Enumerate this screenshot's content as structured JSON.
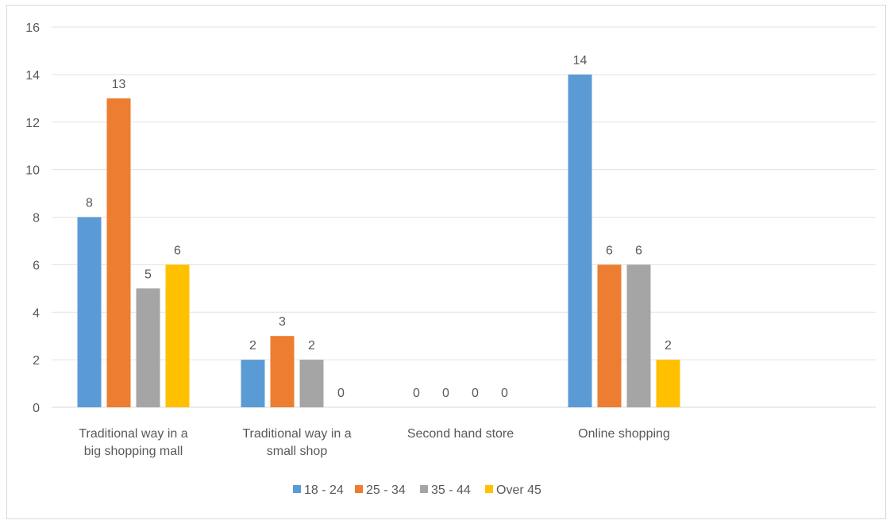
{
  "chart_data": {
    "type": "bar",
    "title": "",
    "xlabel": "",
    "ylabel": "",
    "ylim": [
      0,
      16
    ],
    "yticks": [
      0,
      2,
      4,
      6,
      8,
      10,
      12,
      14,
      16
    ],
    "grid": true,
    "legend_position": "bottom",
    "categories": [
      [
        "Traditional way in a",
        "big shopping mall"
      ],
      [
        "Traditional way in a",
        "small shop"
      ],
      [
        "Second hand store"
      ],
      [
        "Online shopping"
      ]
    ],
    "series": [
      {
        "name": "18 - 24",
        "color": "#5b9bd5",
        "values": [
          8,
          2,
          0,
          14
        ]
      },
      {
        "name": "25 - 34",
        "color": "#ed7d31",
        "values": [
          13,
          3,
          0,
          6
        ]
      },
      {
        "name": "35 - 44",
        "color": "#a5a5a5",
        "values": [
          5,
          2,
          0,
          6
        ]
      },
      {
        "name": "Over 45",
        "color": "#ffc000",
        "values": [
          6,
          0,
          0,
          2
        ]
      }
    ],
    "data_labels": true
  }
}
